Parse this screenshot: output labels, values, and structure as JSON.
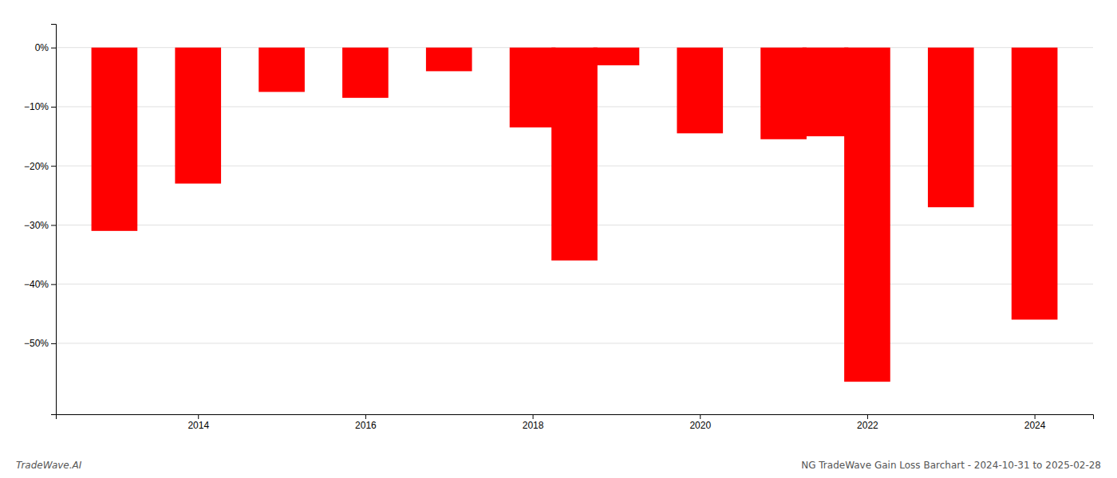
{
  "chart_data": {
    "type": "bar",
    "x": [
      2013,
      2014,
      2015,
      2016,
      2017,
      2018,
      2018.5,
      2019,
      2020,
      2021,
      2021.5,
      2022,
      2023,
      2024
    ],
    "values": [
      -31.0,
      -23.0,
      -7.5,
      -8.5,
      -4.0,
      -13.5,
      -36.0,
      -3.0,
      -14.5,
      -15.5,
      -15.0,
      -56.5,
      -27.0,
      -46.0
    ],
    "color": "#ff0000",
    "xlim": [
      2012.3,
      2024.7
    ],
    "xticks": [
      2014,
      2016,
      2018,
      2020,
      2022,
      2024
    ],
    "ylim": [
      -62,
      4
    ],
    "yticks": [
      {
        "value": 0,
        "label": "0%"
      },
      {
        "value": -10,
        "label": "−10%"
      },
      {
        "value": -20,
        "label": "−20%"
      },
      {
        "value": -30,
        "label": "−30%"
      },
      {
        "value": -40,
        "label": "−40%"
      },
      {
        "value": -50,
        "label": "−50%"
      }
    ],
    "grid": true,
    "annotations": [
      "TradeWave.AI",
      "NG TradeWave Gain Loss Barchart - 2024-10-31 to 2025-02-28"
    ]
  }
}
